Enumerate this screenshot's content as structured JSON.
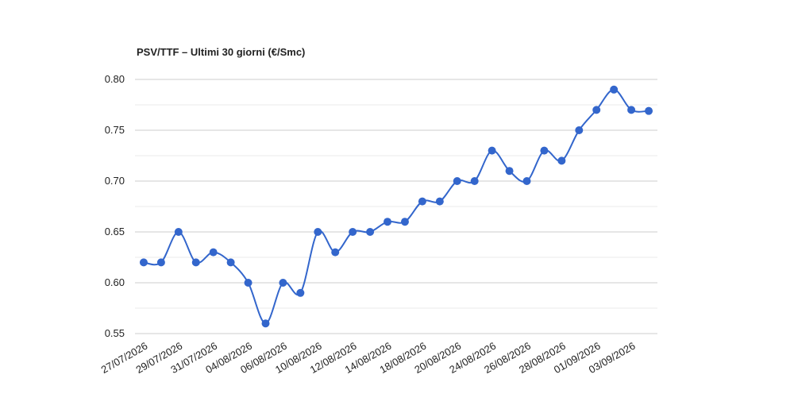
{
  "chart_data": {
    "type": "line",
    "title": "PSV/TTF – Ultimi 30 giorni (€/Smc)",
    "categories": [
      "27/07/2026",
      null,
      "29/07/2026",
      null,
      "31/07/2026",
      null,
      "04/08/2026",
      null,
      "06/08/2026",
      null,
      "10/08/2026",
      null,
      "12/08/2026",
      null,
      "14/08/2026",
      null,
      "18/08/2026",
      null,
      "20/08/2026",
      null,
      "24/08/2026",
      null,
      "26/08/2026",
      null,
      "28/08/2026",
      null,
      "01/09/2026",
      null,
      "03/09/2026",
      null
    ],
    "values": [
      0.62,
      0.62,
      0.65,
      0.62,
      0.63,
      0.62,
      0.6,
      0.56,
      0.6,
      0.59,
      0.65,
      0.63,
      0.65,
      0.65,
      0.66,
      0.66,
      0.68,
      0.68,
      0.7,
      0.7,
      0.73,
      0.71,
      0.7,
      0.73,
      0.72,
      0.75,
      0.77,
      0.79,
      0.77,
      0.769
    ],
    "color": "#3366cc",
    "ylim": [
      0.55,
      0.8
    ],
    "yticks": [
      0.55,
      {
        "value": 0.6,
        "label": "0.60"
      },
      0.65,
      {
        "value": 0.7,
        "label": "0.70"
      },
      0.75,
      {
        "value": 0.8,
        "label": "0.80"
      }
    ],
    "minor_yticks": [
      0.575,
      0.625,
      0.675,
      0.725,
      0.775
    ],
    "grid": true,
    "smooth": true
  }
}
